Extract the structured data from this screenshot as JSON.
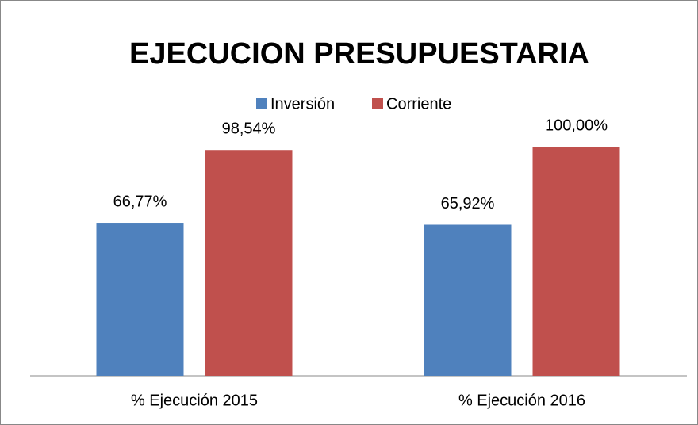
{
  "chart_data": {
    "type": "bar",
    "title": "EJECUCION PRESUPUESTARIA",
    "categories": [
      "% Ejecución 2015",
      "% Ejecución 2016"
    ],
    "series": [
      {
        "name": "Inversión",
        "color": "#4f81bd",
        "values": [
          66.77,
          65.92
        ],
        "value_labels": [
          "66,77%",
          "65,92%"
        ]
      },
      {
        "name": "Corriente",
        "color": "#c0504d",
        "values": [
          98.54,
          100
        ],
        "value_labels": [
          "98,54%",
          "100,00%"
        ]
      }
    ],
    "legend": "top"
  }
}
